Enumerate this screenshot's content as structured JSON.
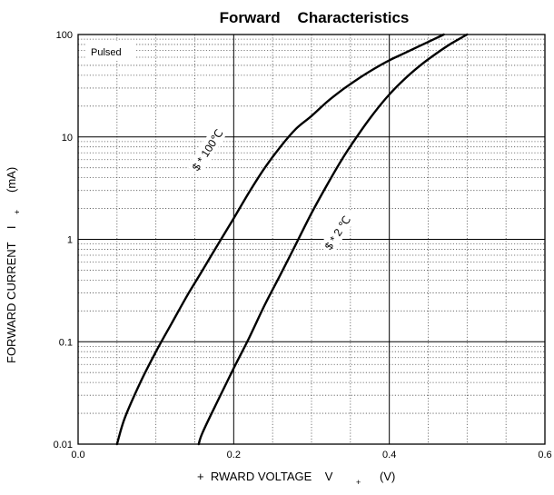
{
  "chart_data": {
    "type": "line",
    "title": "Forward    Characteristics",
    "xlabel": "+  RWARD VOLTAGE    V",
    "xlabel_subscript": "+",
    "xlabel_unit": "(V)",
    "ylabel": "FORWARD CURRENT    I",
    "ylabel_subscript": "+",
    "ylabel_unit": "(mA)",
    "xlim": [
      0.0,
      0.6
    ],
    "ylim": [
      0.01,
      100
    ],
    "yscale": "log",
    "xticks": [
      "0.0",
      "0.2",
      "0.4",
      "0.6"
    ],
    "yticks": [
      "0.01",
      "0.1",
      "1",
      "10",
      "100"
    ],
    "grid": true,
    "note": "Pulsed",
    "series": [
      {
        "name": "$ * 100℃",
        "x": [
          0.05,
          0.06,
          0.08,
          0.1,
          0.12,
          0.14,
          0.16,
          0.18,
          0.2,
          0.22,
          0.24,
          0.26,
          0.28,
          0.3,
          0.32,
          0.34,
          0.36,
          0.38,
          0.4,
          0.42,
          0.44,
          0.46,
          0.47
        ],
        "y": [
          0.01,
          0.018,
          0.04,
          0.08,
          0.15,
          0.28,
          0.5,
          0.9,
          1.6,
          2.9,
          5.0,
          8.0,
          12,
          16,
          22,
          29,
          37,
          46,
          56,
          66,
          78,
          92,
          100
        ]
      },
      {
        "name": "$ * 2 ℃",
        "x": [
          0.155,
          0.16,
          0.18,
          0.2,
          0.22,
          0.24,
          0.26,
          0.28,
          0.3,
          0.32,
          0.34,
          0.36,
          0.38,
          0.4,
          0.42,
          0.44,
          0.46,
          0.48,
          0.5
        ],
        "y": [
          0.01,
          0.013,
          0.027,
          0.055,
          0.11,
          0.23,
          0.45,
          0.9,
          1.8,
          3.4,
          6.2,
          10.5,
          17,
          26,
          37,
          50,
          65,
          82,
          100
        ]
      }
    ]
  }
}
